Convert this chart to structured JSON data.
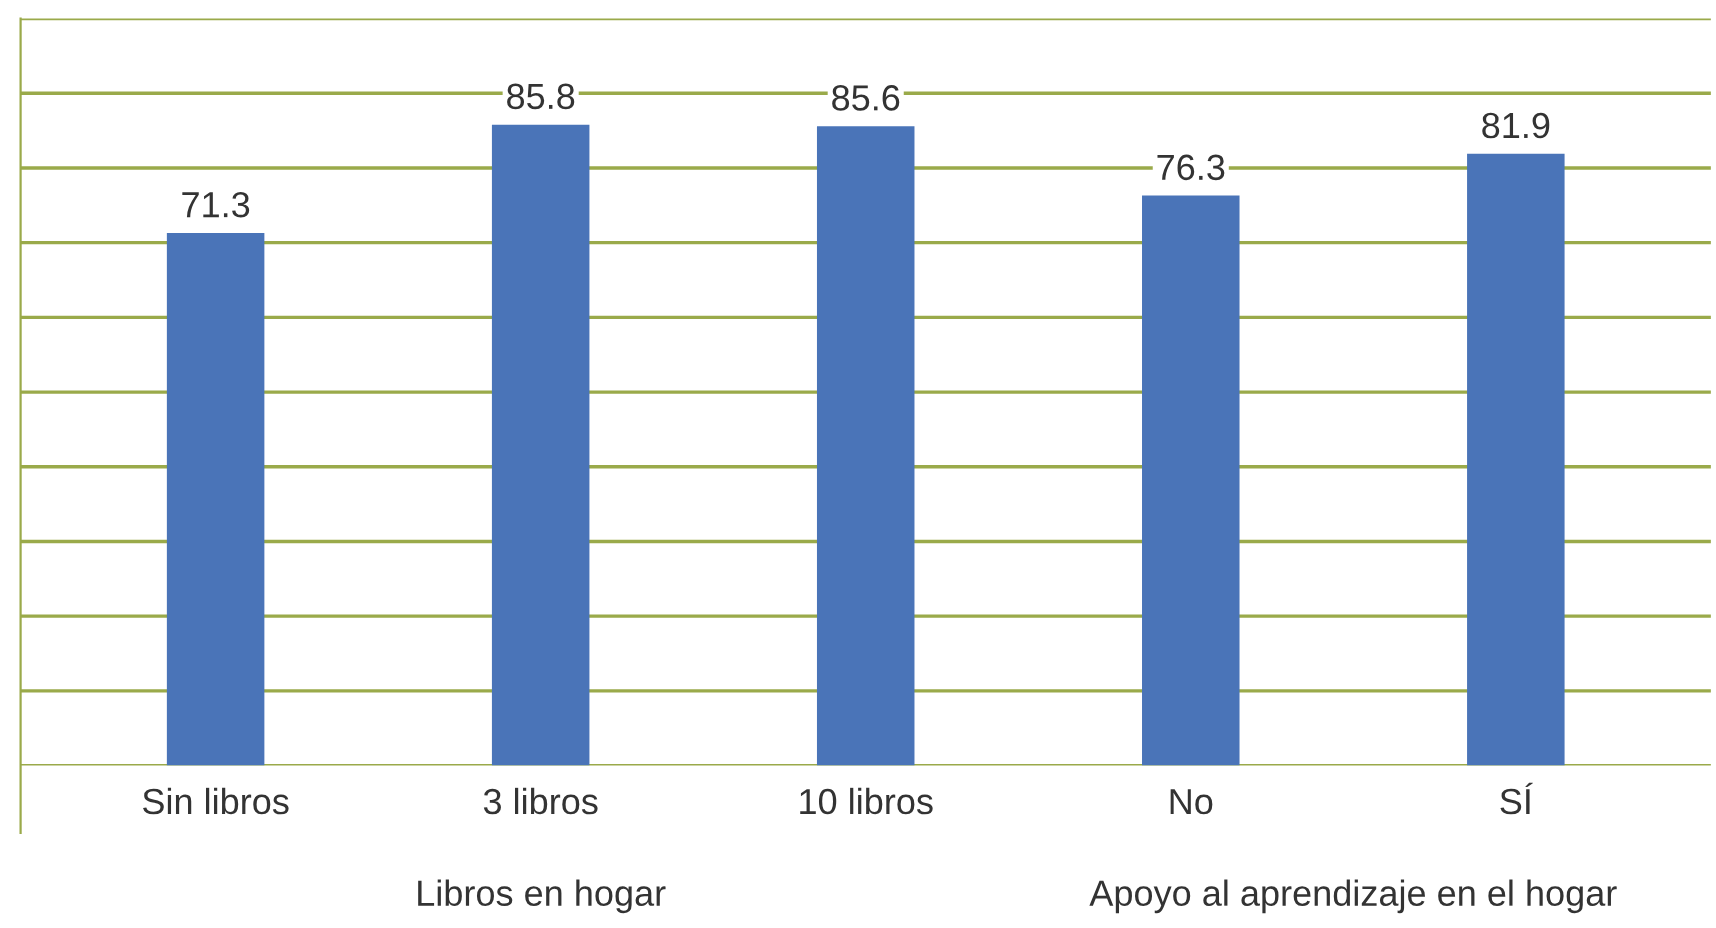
{
  "chart_data": {
    "type": "bar",
    "categories": [
      "Sin libros",
      "3 libros",
      "10 libros",
      "No",
      "SÍ"
    ],
    "values": [
      71.3,
      85.8,
      85.6,
      76.3,
      81.9
    ],
    "color": "#4a74b8",
    "data_labels": true,
    "ylim": [
      0,
      100
    ],
    "yticks": [
      {
        "value": 0,
        "label": null
      },
      {
        "value": 10,
        "label": null
      },
      {
        "value": 20,
        "label": null
      },
      {
        "value": 30,
        "label": null
      },
      {
        "value": 40,
        "label": null
      },
      {
        "value": 50,
        "label": null
      },
      {
        "value": 60,
        "label": null
      },
      {
        "value": 70,
        "label": null
      },
      {
        "value": 80,
        "label": null
      },
      {
        "value": 90,
        "label": null
      },
      {
        "value": 100,
        "label": null
      }
    ],
    "tick_labels": "x",
    "grid": "y",
    "annotations": [
      "Libros en hogar",
      "Apoyo al aprendizaje en el hogar"
    ]
  }
}
